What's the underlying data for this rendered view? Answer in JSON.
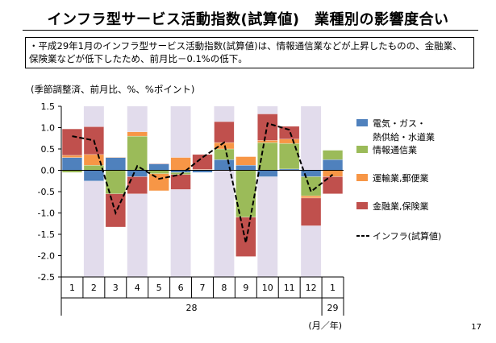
{
  "title": "インフラ型サービス活動指数(試算値)　業種別の影響度合い",
  "note": "・平成29年1月のインフラ型サービス活動指数(試算値)は、情報通信業などが上昇したものの、金融業、保険業などが低下したため、前月比－0.1%の低下。",
  "page_number": "17",
  "chart_data": {
    "type": "bar",
    "subtype": "stacked bar with line",
    "unit_label": "(季節調整済、前月比、%、%ポイント)",
    "categories": [
      "1",
      "2",
      "3",
      "4",
      "5",
      "6",
      "7",
      "8",
      "9",
      "10",
      "11",
      "12",
      "1"
    ],
    "year_labels": [
      "28",
      "29"
    ],
    "x_unit_label": "(月／年)",
    "ylim": [
      -2.5,
      1.5
    ],
    "yticks": [
      "1.5",
      "1.0",
      "0.5",
      "0.0",
      "-0.5",
      "-1.0",
      "-1.5",
      "-2.0",
      "-2.5"
    ],
    "shaded_months": "even months 2,4,6,8,10,12",
    "legend_position": "right",
    "series": [
      {
        "name": "電気・ガス・熱供給・水道業",
        "legend_lines": [
          "電気・ガス・",
          "熱供給・水道業"
        ],
        "color": "#4f81bd",
        "values": [
          0.3,
          -0.25,
          0.3,
          -0.15,
          0.15,
          -0.05,
          -0.05,
          0.25,
          0.12,
          -0.15,
          0.03,
          -0.15,
          0.25
        ]
      },
      {
        "name": "情報通信業",
        "legend_lines": [
          "情報通信業"
        ],
        "color": "#9bbb59",
        "values": [
          -0.05,
          0.12,
          -0.55,
          0.8,
          -0.08,
          -0.05,
          0.01,
          0.25,
          -1.1,
          0.65,
          0.6,
          -0.45,
          0.22
        ]
      },
      {
        "name": "運輸業,郵便業",
        "legend_lines": [
          "運輸業,郵便業"
        ],
        "color": "#f79646",
        "values": [
          0.05,
          0.25,
          0.01,
          0.1,
          -0.4,
          0.3,
          0.01,
          0.15,
          0.2,
          0.05,
          0.1,
          -0.05,
          -0.15
        ]
      },
      {
        "name": "金融業,保険業",
        "legend_lines": [
          "金融業,保険業"
        ],
        "color": "#c0504d",
        "values": [
          0.62,
          0.65,
          -0.78,
          -0.4,
          0.01,
          -0.35,
          0.35,
          0.49,
          -0.92,
          0.62,
          0.3,
          -0.65,
          -0.4
        ]
      }
    ],
    "line": {
      "name": "インフラ(試算値)",
      "legend_lines": [
        "インフラ(試算値)"
      ],
      "color": "#000000",
      "dashed": true,
      "values": [
        0.8,
        0.7,
        -1.0,
        0.1,
        -0.2,
        -0.1,
        0.3,
        0.65,
        -1.7,
        1.1,
        0.95,
        -0.5,
        -0.1
      ]
    }
  }
}
